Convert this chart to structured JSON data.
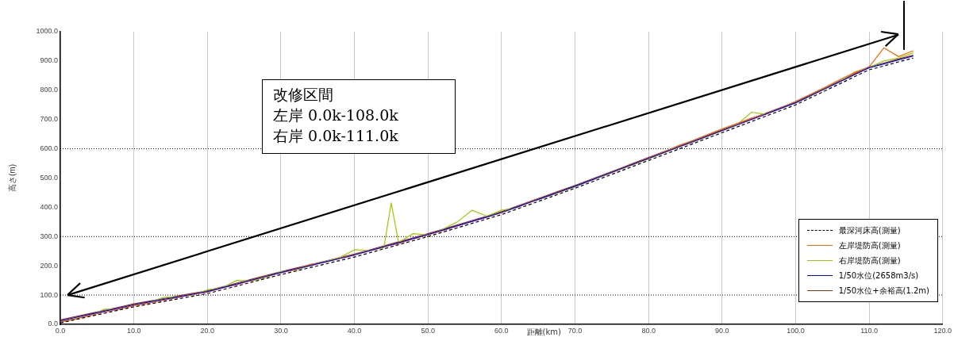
{
  "chart_data": {
    "type": "line",
    "xlabel": "距離(km)",
    "ylabel": "高さ(m)",
    "annotations": [
      "改修区間",
      "左岸 0.0k-108.0k",
      "右岸 0.0k-111.0k"
    ],
    "x": [
      0,
      2,
      4,
      6,
      8,
      10,
      12,
      14,
      16,
      18,
      20,
      22,
      24,
      26,
      28,
      30,
      32,
      34,
      36,
      38,
      40,
      42,
      44,
      46,
      48,
      50,
      52,
      54,
      56,
      58,
      60,
      62,
      64,
      66,
      68,
      70,
      72,
      74,
      76,
      78,
      80,
      82,
      84,
      86,
      88,
      90,
      92,
      94,
      96,
      98,
      100,
      102,
      104,
      106,
      108,
      110,
      112,
      114,
      116
    ],
    "series": [
      {
        "name": "最深河床高(測量)",
        "color": "#000000",
        "line_style": "dashed",
        "values": [
          5,
          16,
          27,
          38,
          49,
          60,
          69,
          78,
          87,
          96,
          105,
          118,
          131,
          144,
          157,
          170,
          182,
          194,
          206,
          218,
          230,
          244,
          258,
          272,
          286,
          300,
          315,
          330,
          345,
          360,
          375,
          393,
          411,
          429,
          447,
          465,
          484,
          503,
          522,
          541,
          560,
          579,
          598,
          617,
          636,
          655,
          674,
          693,
          712,
          731,
          750,
          774,
          798,
          822,
          846,
          870,
          883,
          897,
          910
        ]
      },
      {
        "name": "左岸堤防高(測量)",
        "color": "#ff6600",
        "line_style": "solid",
        "values": [
          8,
          18,
          30,
          42,
          52,
          64,
          72,
          82,
          92,
          102,
          110,
          124,
          136,
          150,
          165,
          176,
          188,
          205,
          212,
          226,
          238,
          252,
          265,
          276,
          292,
          306,
          320,
          336,
          352,
          366,
          382,
          400,
          420,
          436,
          454,
          472,
          492,
          510,
          530,
          548,
          568,
          588,
          610,
          628,
          648,
          668,
          686,
          705,
          720,
          740,
          762,
          786,
          810,
          836,
          860,
          880,
          945,
          915,
          935
        ]
      },
      {
        "name": "右岸堤防高(測量)",
        "color": "#99cc00",
        "line_style": "solid",
        "x": [
          0,
          2,
          4,
          6,
          8,
          10,
          12,
          14,
          16,
          18,
          20,
          22,
          24,
          26,
          28,
          30,
          32,
          34,
          36,
          38,
          40,
          42,
          44,
          45,
          46,
          48,
          50,
          52,
          54,
          56,
          58,
          60,
          62,
          64,
          66,
          68,
          70,
          72,
          74,
          76,
          78,
          80,
          82,
          84,
          86,
          88,
          90,
          92,
          94,
          96,
          98,
          100,
          102,
          104,
          106,
          108,
          110,
          112,
          114,
          116
        ],
        "values": [
          8,
          20,
          30,
          52,
          52,
          66,
          75,
          92,
          95,
          100,
          118,
          125,
          150,
          148,
          160,
          180,
          185,
          200,
          215,
          228,
          255,
          252,
          262,
          415,
          280,
          310,
          305,
          325,
          350,
          390,
          370,
          390,
          398,
          418,
          434,
          452,
          470,
          490,
          508,
          528,
          546,
          565,
          585,
          605,
          622,
          642,
          662,
          682,
          725,
          718,
          738,
          756,
          780,
          806,
          830,
          862,
          878,
          900,
          910,
          928
        ]
      },
      {
        "name": "1/50水位(2658m3/s)",
        "color": "#0000ff",
        "line_style": "solid",
        "values": [
          12,
          23,
          34,
          45,
          56,
          67,
          76,
          85,
          94,
          103,
          112,
          125,
          138,
          151,
          164,
          177,
          189,
          201,
          213,
          225,
          237,
          251,
          265,
          279,
          293,
          307,
          322,
          337,
          352,
          367,
          382,
          400,
          418,
          436,
          454,
          472,
          491,
          510,
          529,
          548,
          567,
          586,
          605,
          624,
          643,
          662,
          681,
          700,
          719,
          738,
          757,
          781,
          805,
          829,
          853,
          877,
          890,
          904,
          917
        ]
      },
      {
        "type": "line",
        "color": "#000000",
        "line_style": "solid",
        "x": [
          1,
          114
        ],
        "values": [
          100,
          990
        ]
      },
      {
        "name": "1/50水位+余裕高(1.2m)",
        "color": "#993300",
        "line_style": "solid",
        "values": [
          15,
          26,
          37,
          48,
          59,
          70,
          79,
          88,
          97,
          106,
          115,
          128,
          141,
          154,
          167,
          180,
          192,
          204,
          216,
          228,
          240,
          254,
          268,
          282,
          296,
          310,
          325,
          340,
          355,
          370,
          385,
          403,
          421,
          439,
          457,
          475,
          494,
          513,
          532,
          551,
          570,
          589,
          608,
          627,
          646,
          665,
          684,
          703,
          722,
          741,
          760,
          784,
          808,
          832,
          856,
          880,
          893,
          907,
          920
        ]
      }
    ],
    "xlim": [
      0,
      120
    ],
    "ylim": [
      0,
      1000
    ],
    "xticks": [
      {
        "value": 0,
        "label": "0.0"
      },
      {
        "value": 10,
        "label": "10.0"
      },
      {
        "value": 20,
        "label": "20.0"
      },
      {
        "value": 30,
        "label": "30.0"
      },
      {
        "value": 40,
        "label": "40.0"
      },
      {
        "value": 50,
        "label": "50.0"
      },
      {
        "value": 60,
        "label": "60.0"
      },
      {
        "value": 70,
        "label": "70.0"
      },
      {
        "value": 80,
        "label": "80.0"
      },
      {
        "value": 90,
        "label": "90.0"
      },
      {
        "value": 100,
        "label": "100.0"
      },
      {
        "value": 110,
        "label": "110.0"
      },
      {
        "value": 120,
        "label": "120.0"
      }
    ],
    "yticks": [
      {
        "value": 0,
        "label": "0.0"
      },
      {
        "value": 100,
        "label": "100.0"
      },
      {
        "value": 200,
        "label": "200.0"
      },
      {
        "value": 300,
        "label": "300.0"
      },
      {
        "value": 400,
        "label": "400.0"
      },
      {
        "value": 500,
        "label": "500.0"
      },
      {
        "value": 600,
        "label": "600.0"
      },
      {
        "value": 700,
        "label": "700.0"
      },
      {
        "value": 800,
        "label": "800.0"
      },
      {
        "value": 900,
        "label": "900.0"
      },
      {
        "value": 1000,
        "label": "1000.0"
      }
    ],
    "grid": "x",
    "legend": "bottom right",
    "marker": "none",
    "ref_lines": [
      {
        "axis": "y",
        "value": 100,
        "color": "#000000",
        "line_style": "dotted"
      },
      {
        "axis": "y",
        "value": 300,
        "color": "#000000",
        "line_style": "dotted"
      },
      {
        "axis": "y",
        "value": 600,
        "color": "#000000",
        "line_style": "dotted"
      }
    ]
  }
}
